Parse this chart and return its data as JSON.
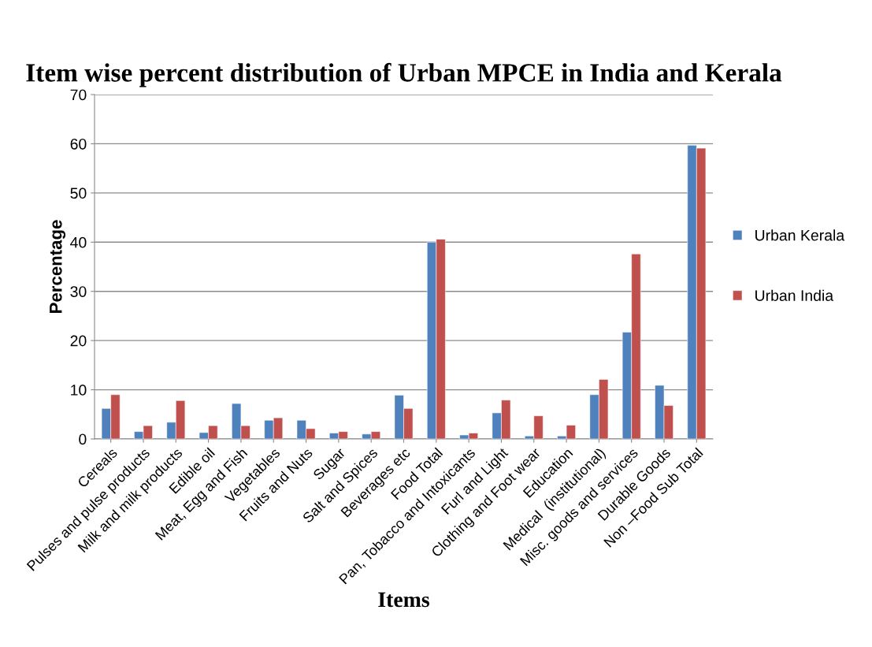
{
  "chart_data": {
    "type": "bar",
    "title": "Item wise percent distribution of Urban MPCE in India and Kerala",
    "xlabel": "Items",
    "ylabel": "Percentage",
    "categories": [
      "Cereals",
      "Pulses and pulse products",
      "Milk and milk products",
      "Edible oil",
      "Meat, Egg and Fish",
      "Vegetables",
      "Fruits and Nuts",
      "Sugar",
      "Salt and Spices",
      "Beverages etc",
      "Food Total",
      "Pan, Tobacco and Intoxicants",
      "Furl and Light",
      "Clothing and Foot wear",
      "Education",
      "Medical  (institutional)",
      "Misc. goods and services",
      "Durable Goods",
      "Non –Food Sub Total"
    ],
    "series": [
      {
        "name": "Urban Kerala",
        "color": "#4f81bd",
        "values": [
          6.2,
          1.5,
          3.4,
          1.3,
          7.2,
          3.8,
          3.8,
          1.2,
          1.0,
          8.9,
          40.0,
          0.8,
          5.3,
          0.6,
          0.6,
          9.0,
          21.7,
          10.9,
          59.7
        ]
      },
      {
        "name": "Urban India",
        "color": "#c0504d",
        "values": [
          9.0,
          2.7,
          7.8,
          2.7,
          2.7,
          4.3,
          2.1,
          1.5,
          1.5,
          6.2,
          40.6,
          1.2,
          7.9,
          4.7,
          2.8,
          12.1,
          37.6,
          6.8,
          59.1
        ]
      }
    ],
    "ylim": [
      0,
      70
    ],
    "yticks": [
      0,
      10,
      20,
      30,
      40,
      50,
      60,
      70
    ],
    "grid": "y",
    "legend": "right"
  }
}
